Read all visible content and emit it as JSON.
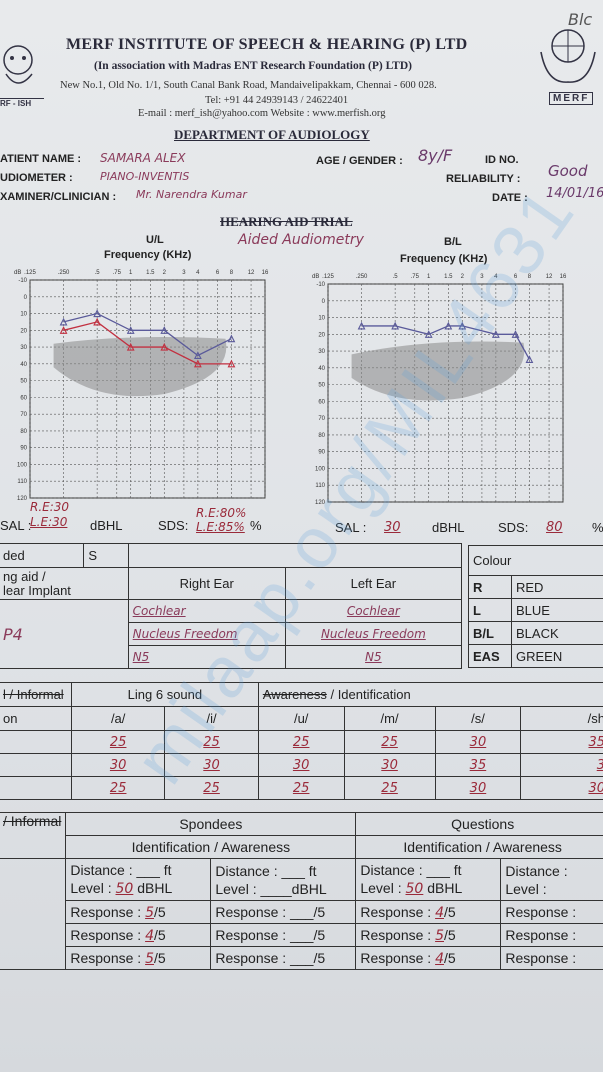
{
  "header": {
    "corner_note": "Blc",
    "title": "MERF INSTITUTE OF SPEECH & HEARING (P) LTD",
    "association": "(In association with Madras ENT Research Foundation (P) LTD)",
    "address": "New No.1, Old No. 1/1, South Canal Bank Road, Mandaivelipakkam, Chennai - 600 028.",
    "tel": "Tel: +91 44 24939143 / 24622401",
    "contact": "E-mail : merf_ish@yahoo.com Website : www.merfish.org",
    "department": "DEPARTMENT OF AUDIOLOGY",
    "logo_left_text": "RF - ISH",
    "logo_right_text": "MERF"
  },
  "patient": {
    "name_label": "ATIENT NAME :",
    "name_value": "SAMARA ALEX",
    "age_label": "AGE / GENDER :",
    "age_value": "8y/F",
    "id_label": "ID NO.",
    "id_value": "",
    "audiometer_label": "UDIOMETER :",
    "audiometer_value": "PIANO-INVENTIS",
    "reliability_label": "RELIABILITY :",
    "reliability_value": "Good",
    "examiner_label": "XAMINER/CLINICIAN :",
    "examiner_value": "Mr. Narendra Kumar",
    "date_label": "DATE :",
    "date_value": "14/01/16"
  },
  "trial": {
    "title": "HEARING AID TRIAL",
    "handwritten": "Aided Audiometry",
    "left_chart_label": "U/L",
    "right_chart_label": "B/L",
    "freq_label": "Frequency (KHz)",
    "freq_ticks": [
      ".125",
      ".250",
      ".5",
      ".75",
      "1",
      "1.5",
      "2",
      "3",
      "4",
      "6",
      "8",
      "12",
      "16"
    ],
    "db_label": "dB",
    "db_ticks": [
      "-10",
      "0",
      "10",
      "20",
      "30",
      "40",
      "50",
      "60",
      "70",
      "80",
      "90",
      "100",
      "110",
      "120"
    ],
    "left_note_below": "R.E:30",
    "left_note_above_sds": "R.E:80%",
    "sal_label_left": "SAL :",
    "sal_value_left": "L.E:30",
    "dbhl": "dBHL",
    "sds_label": "SDS:",
    "sds_value_left": "L.E:85%",
    "percent": "%",
    "sal_label_right": "SAL :",
    "sal_value_right": "30",
    "sds_value_right": "80"
  },
  "chart_data": [
    {
      "type": "line",
      "title": "U/L",
      "xlabel": "Frequency (KHz)",
      "ylabel": "dB",
      "x": [
        0.25,
        0.5,
        1,
        2,
        4,
        8
      ],
      "ylim": [
        120,
        -10
      ],
      "series": [
        {
          "name": "R",
          "color": "#c23040",
          "values": [
            20,
            15,
            30,
            30,
            40,
            40
          ]
        },
        {
          "name": "L",
          "color": "#5a5a9a",
          "values": [
            15,
            10,
            20,
            20,
            35,
            25
          ]
        }
      ]
    },
    {
      "type": "line",
      "title": "B/L",
      "xlabel": "Frequency (KHz)",
      "ylabel": "dB",
      "x": [
        0.25,
        0.5,
        1,
        1.5,
        2,
        4,
        6,
        8
      ],
      "ylim": [
        120,
        -10
      ],
      "series": [
        {
          "name": "B/L",
          "color": "#5a5a9a",
          "values": [
            15,
            15,
            20,
            15,
            15,
            20,
            20,
            35
          ]
        }
      ]
    }
  ],
  "device_table": {
    "ded": "ded",
    "s": "S",
    "aid_label": "ng aid /",
    "aid_label2": "lear Implant",
    "right_ear": "Right Ear",
    "left_ear": "Left Ear",
    "row1_right": "Cochlear",
    "row1_left": "Cochlear",
    "row2_right": "Nucleus Freedom",
    "row2_left": "Nucleus Freedom",
    "row3_right": "N5",
    "row3_left": "N5",
    "side_note": "P4"
  },
  "colour_table": {
    "header": "Colour",
    "rows": [
      {
        "code": "R",
        "name": "RED"
      },
      {
        "code": "L",
        "name": "BLUE"
      },
      {
        "code": "B/L",
        "name": "BLACK"
      },
      {
        "code": "EAS",
        "name": "GREEN"
      }
    ]
  },
  "ling": {
    "left_header": "l / Informal",
    "title": "Ling 6 sound",
    "awareness": "Awareness",
    "identification": "/ Identification",
    "row_label": "on",
    "sounds": [
      "/a/",
      "/i/",
      "/u/",
      "/m/",
      "/s/",
      "/sh"
    ],
    "rows": [
      [
        "25",
        "25",
        "25",
        "25",
        "30",
        "35"
      ],
      [
        "30",
        "30",
        "30",
        "30",
        "35",
        "3"
      ],
      [
        "25",
        "25",
        "25",
        "25",
        "30",
        "30"
      ]
    ]
  },
  "spondees": {
    "left_header": "/ Informal",
    "spondees_title": "Spondees",
    "questions_title": "Questions",
    "ident_aw": "Identification / Awareness",
    "distance_label": "Distance :",
    "ft": "ft",
    "level_label": "Level :",
    "dbhl": "dBHL",
    "response_label": "Response :",
    "of5": "/5",
    "col1_level": "50",
    "col3_level": "50",
    "col1_resp": [
      "5",
      "4",
      "5"
    ],
    "col3_resp": [
      "4",
      "5",
      "4"
    ]
  },
  "watermark": "milaap.org/MIL4631"
}
